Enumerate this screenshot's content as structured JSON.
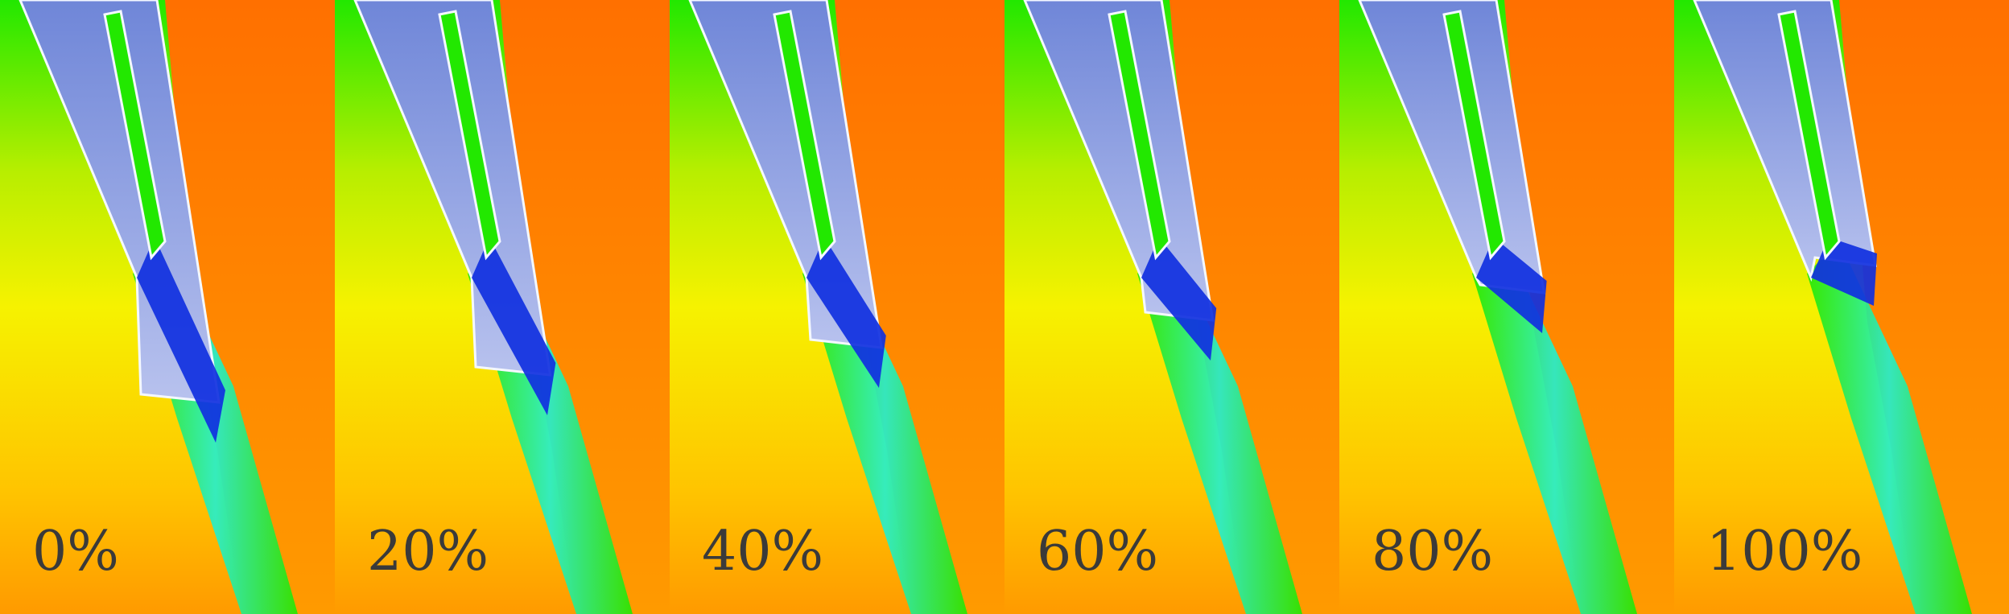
{
  "panels": [
    {
      "label": "0%",
      "gap_fraction": 0.0
    },
    {
      "label": "20%",
      "gap_fraction": 0.2
    },
    {
      "label": "40%",
      "gap_fraction": 0.4
    },
    {
      "label": "60%",
      "gap_fraction": 0.6
    },
    {
      "label": "80%",
      "gap_fraction": 0.8
    },
    {
      "label": "100%",
      "gap_fraction": 1.0
    }
  ],
  "colors": {
    "sky_top": "#6f86d8",
    "sky_bottom": "#b8c2ee",
    "green": "#22e800",
    "yellow": "#f6f200",
    "orange": "#ff9a00",
    "deep_orange": "#ff7000",
    "dark_blue": "#1030e0",
    "cyan": "#20f0d0",
    "outline": "#f4f8ff"
  }
}
